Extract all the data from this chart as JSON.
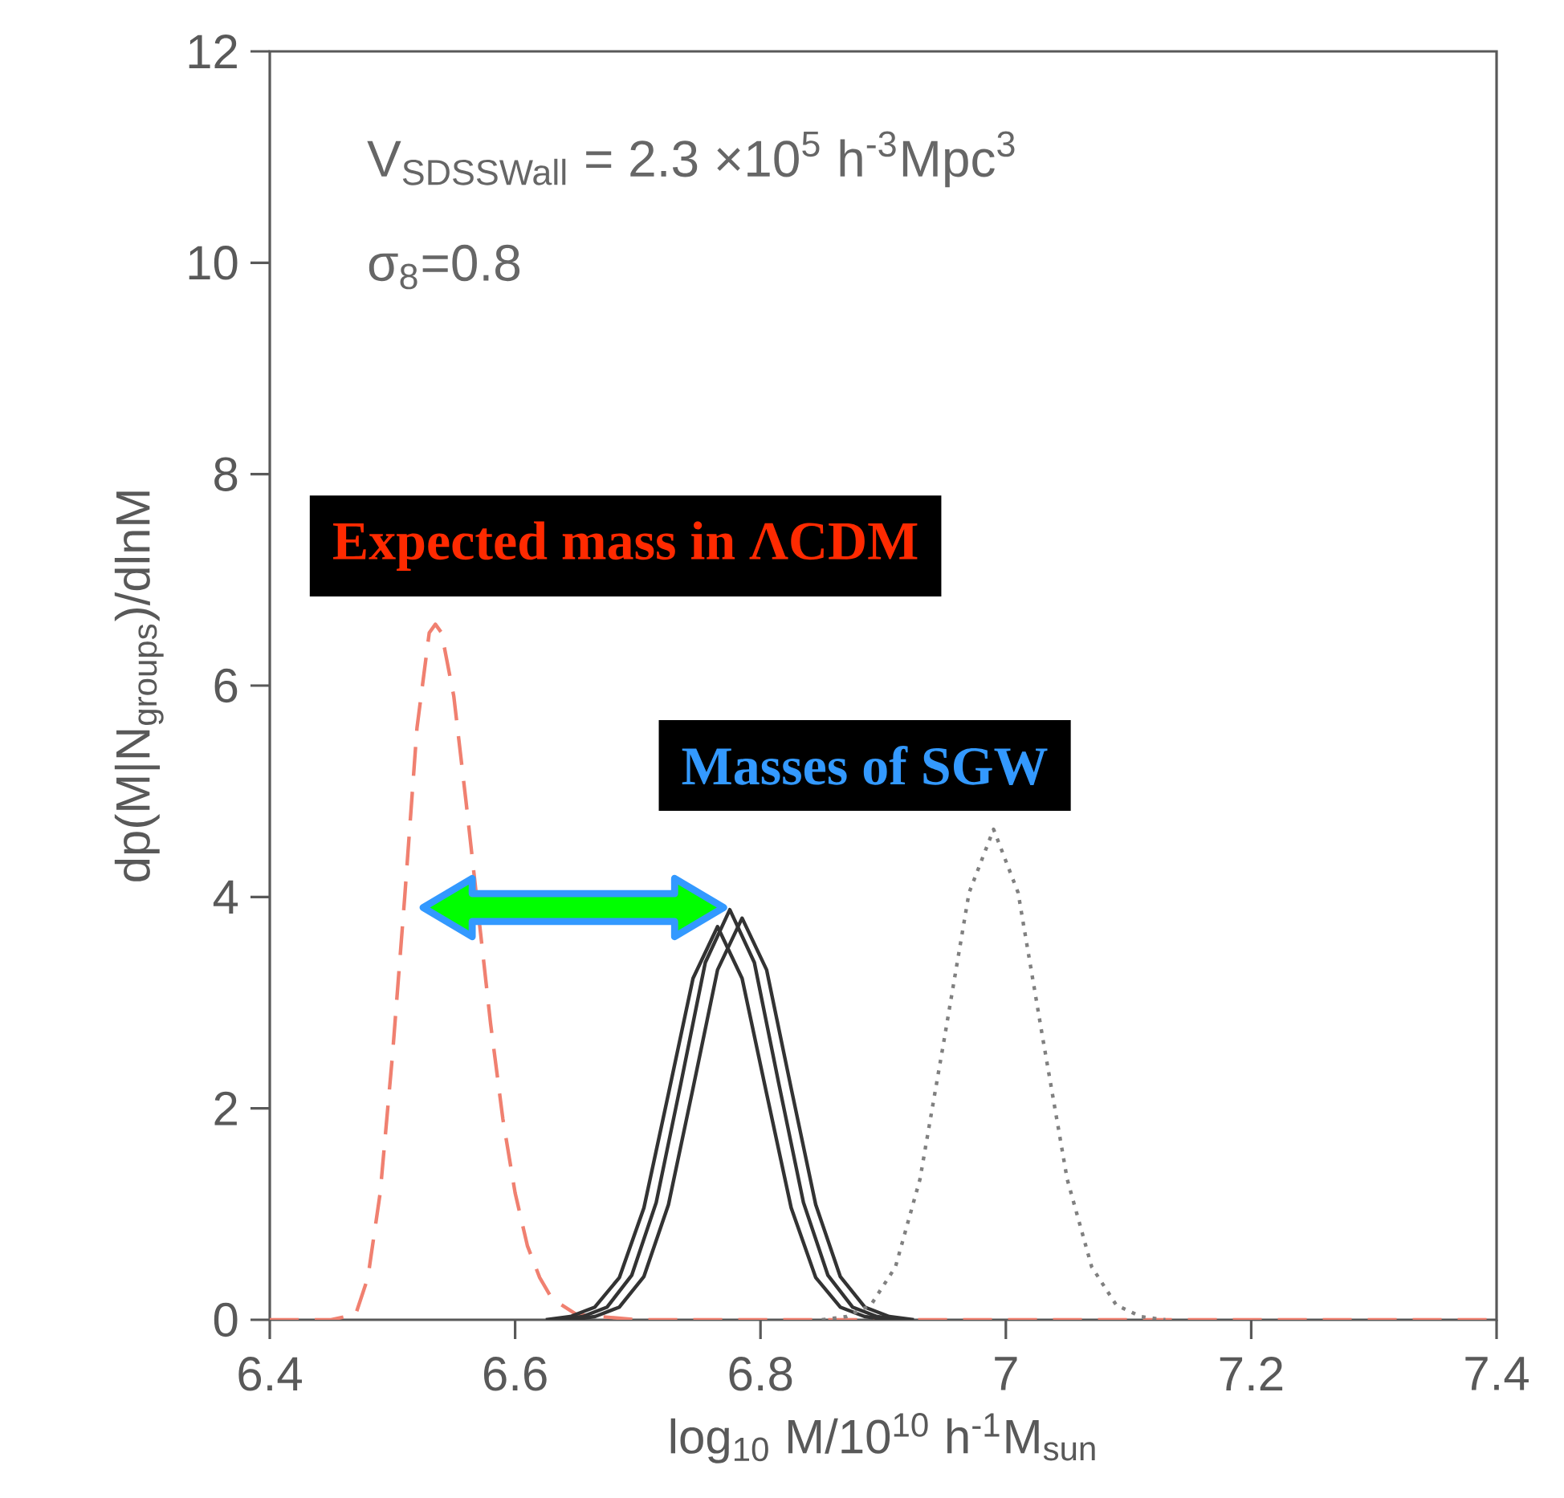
{
  "chart_data": {
    "type": "line",
    "xlabel": "log$_{10}$ M/10$^{10}$ h$^{-1}$M$_{sun}$",
    "ylabel": "dp(M|N$_{groups}$)/dlnM",
    "xlim": [
      6.4,
      7.4
    ],
    "ylim": [
      0,
      12
    ],
    "xticks": [
      6.4,
      6.6,
      6.8,
      7,
      7.2,
      7.4
    ],
    "yticks": [
      0,
      2,
      4,
      6,
      8,
      10,
      12
    ],
    "marker": "none",
    "series": [
      {
        "color": "#f08070",
        "line_style": "dashed",
        "x": [
          6.4,
          6.45,
          6.47,
          6.48,
          6.49,
          6.5,
          6.51,
          6.52,
          6.53,
          6.535,
          6.54,
          6.55,
          6.56,
          6.57,
          6.58,
          6.59,
          6.6,
          6.61,
          6.62,
          6.63,
          6.65,
          6.7,
          7.4
        ],
        "values": [
          0,
          0,
          0.05,
          0.4,
          1.2,
          2.5,
          4.0,
          5.6,
          6.5,
          6.58,
          6.5,
          5.9,
          4.9,
          null,
          2.8,
          1.9,
          1.2,
          0.7,
          0.4,
          0.2,
          0.05,
          0,
          0
        ]
      },
      {
        "color": "#333333",
        "line_style": "solid",
        "x": [
          6.635,
          6.655,
          6.675,
          6.695,
          6.715,
          6.735,
          6.755,
          6.775,
          6.795,
          6.815,
          6.835,
          6.855,
          6.875,
          6.895,
          6.915
        ],
        "values": [
          0.0,
          0.03,
          0.12,
          0.42,
          1.11,
          2.23,
          3.38,
          3.88,
          3.38,
          2.23,
          1.11,
          0.42,
          0.12,
          0.03,
          0.0
        ]
      },
      {
        "color": "#333333",
        "line_style": "solid",
        "x": [
          6.645,
          6.665,
          6.685,
          6.705,
          6.725,
          6.745,
          6.765,
          6.785,
          6.805,
          6.825,
          6.845,
          6.865,
          6.885,
          6.905,
          6.925
        ],
        "values": [
          0.0,
          0.03,
          0.12,
          0.41,
          1.09,
          2.19,
          3.31,
          3.8,
          3.31,
          2.19,
          1.09,
          0.41,
          0.12,
          0.03,
          0.0
        ]
      },
      {
        "color": "#333333",
        "line_style": "solid",
        "x": [
          6.625,
          6.645,
          6.665,
          6.685,
          6.705,
          6.725,
          6.745,
          6.765,
          6.785,
          6.805,
          6.825,
          6.845,
          6.865,
          6.885,
          6.905
        ],
        "values": [
          0.0,
          0.03,
          0.12,
          0.4,
          1.06,
          2.14,
          3.23,
          3.72,
          3.23,
          2.14,
          1.06,
          0.4,
          0.12,
          0.03,
          0.0
        ]
      },
      {
        "color": "#808080",
        "line_style": "dotted",
        "x": [
          6.85,
          6.87,
          6.89,
          6.91,
          6.93,
          6.95,
          6.97,
          6.99,
          7.01,
          7.03,
          7.05,
          7.07,
          7.09,
          7.11,
          7.13
        ],
        "values": [
          0.0,
          0.03,
          0.14,
          0.5,
          1.33,
          2.67,
          4.04,
          4.64,
          4.04,
          2.67,
          1.33,
          0.5,
          0.14,
          0.03,
          0.0
        ]
      }
    ],
    "annotations": [
      "V$_{SDSSWall}$ = 2.3 ×10$^{5}$ h$^{-3}$Mpc$^{3}$",
      "σ$_{8}$=0.8",
      "Expected mass in ΛCDM",
      "Masses of SGW"
    ]
  }
}
